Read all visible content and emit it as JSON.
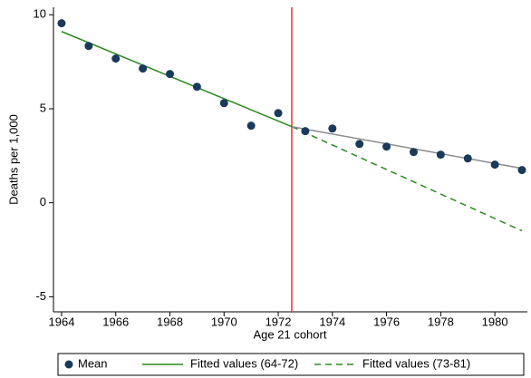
{
  "chart_data": {
    "type": "scatter-fit",
    "x_label": "Age 21 cohort",
    "y_label": "Deaths per 1,000",
    "xlim": [
      1963.7,
      1981.2
    ],
    "ylim": [
      -5.8,
      10.4
    ],
    "xticks": [
      1964,
      1966,
      1968,
      1970,
      1972,
      1974,
      1976,
      1978,
      1980
    ],
    "yticks": [
      -5,
      0,
      5,
      10
    ],
    "vline": {
      "x": 1972.5,
      "color": "#e8303a"
    },
    "legend": "bottom",
    "series": [
      {
        "name": "Mean",
        "color": "#1a3a5c",
        "kind": "scatter",
        "x": [
          1964,
          1965,
          1966,
          1967,
          1968,
          1969,
          1970,
          1971,
          1972,
          1973,
          1974,
          1975,
          1976,
          1977,
          1978,
          1979,
          1980,
          1981
        ],
        "values": [
          9.55,
          8.34,
          7.67,
          7.14,
          6.85,
          6.17,
          5.3,
          4.1,
          4.77,
          3.81,
          3.95,
          3.13,
          2.99,
          2.7,
          2.56,
          2.36,
          2.03,
          1.74
        ]
      },
      {
        "name": "Fitted values (64-72)",
        "color": "#2a8a1e",
        "kind": "solid",
        "x": [
          1964,
          1972.5
        ],
        "values": [
          9.11,
          4.05
        ]
      },
      {
        "name": "Fitted values (73-81)",
        "color": "#2a8a1e",
        "kind": "dashed",
        "x": [
          1972.5,
          1981
        ],
        "values": [
          4.05,
          -1.49
        ]
      },
      {
        "color": "#8c8c8c",
        "kind": "solid",
        "x": [
          1972.5,
          1981
        ],
        "values": [
          4.05,
          1.83
        ]
      }
    ]
  }
}
